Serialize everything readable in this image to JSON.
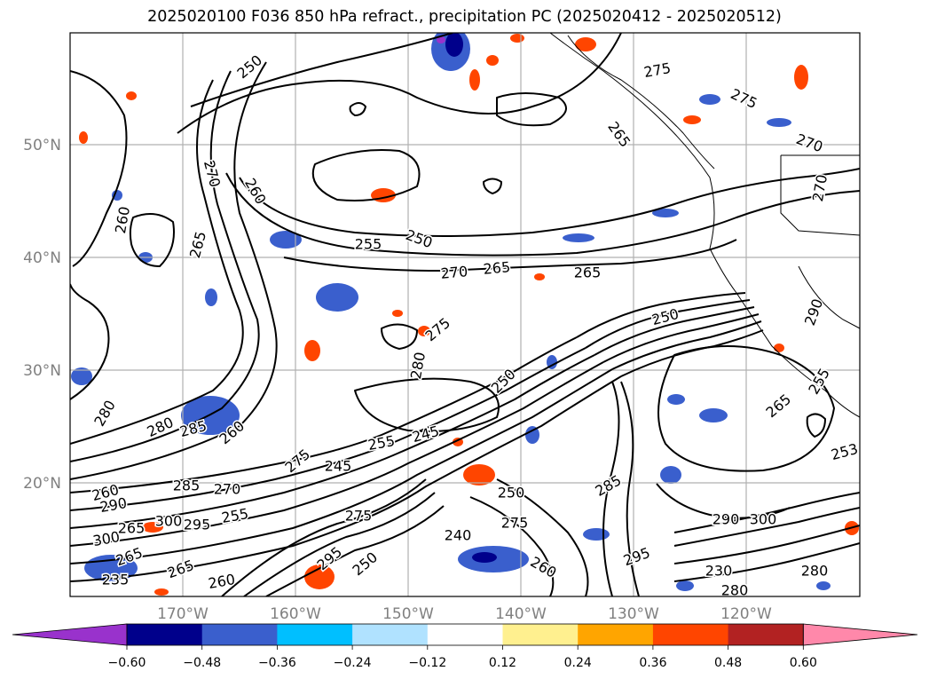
{
  "title": "2025020100 F036 850 hPa refract., precipitation PC (2025020412 - 2025020512)",
  "lat_labels": [
    "50°N",
    "40°N",
    "30°N",
    "20°N"
  ],
  "lon_labels": [
    "170°W",
    "160°W",
    "150°W",
    "140°W",
    "130°W",
    "120°W"
  ],
  "colorbar": {
    "colors": [
      "#9932cc",
      "#00008b",
      "#3a5fcd",
      "#00bfff",
      "#b0e2ff",
      "#ffffff",
      "#fff08f",
      "#ffa500",
      "#ff4500",
      "#b22222",
      "#ff88aa"
    ],
    "tick_labels": [
      "−0.60",
      "−0.48",
      "−0.36",
      "−0.24",
      "−0.12",
      "0.12",
      "0.24",
      "0.36",
      "0.48",
      "0.60"
    ]
  },
  "contour_labels": [
    "250",
    "275",
    "275",
    "265",
    "270",
    "270",
    "260",
    "260",
    "265",
    "255",
    "250",
    "265",
    "270",
    "265",
    "275",
    "280",
    "280",
    "280",
    "285",
    "260",
    "275",
    "245",
    "255",
    "245",
    "250",
    "250",
    "275",
    "285",
    "270",
    "260",
    "290",
    "300",
    "295",
    "255",
    "300",
    "265",
    "265",
    "260",
    "250",
    "295",
    "235",
    "240",
    "260",
    "285",
    "290",
    "300",
    "295",
    "230",
    "280",
    "280",
    "253",
    "265",
    "255",
    "290",
    "270",
    "275",
    "250",
    "265"
  ],
  "palette": {
    "contour": "#000000",
    "grid": "#b0b0b0",
    "axis_text": "#808080"
  }
}
